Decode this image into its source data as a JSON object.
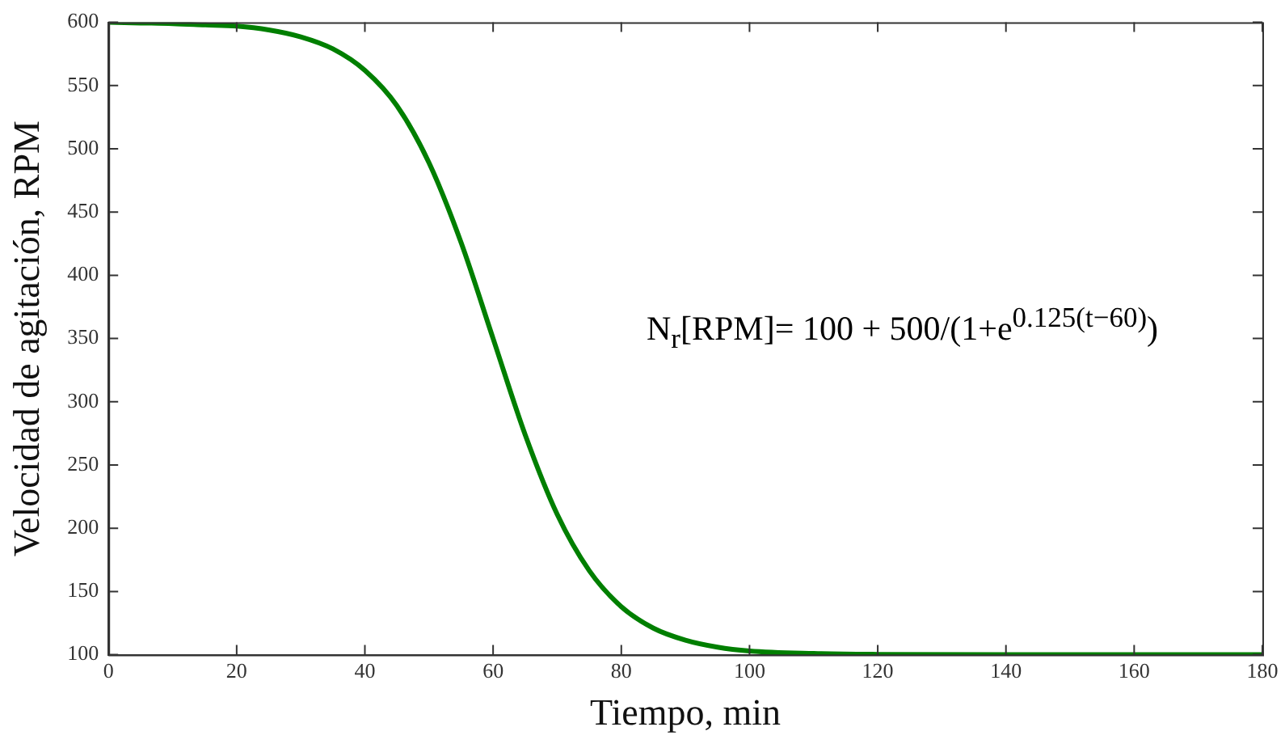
{
  "chart_data": {
    "type": "line",
    "xlabel": "Tiempo, min",
    "ylabel": "Velocidad de agitación, RPM",
    "annotations": [
      "N$_{r}$[RPM]= 100 + 500/(1+e$^{0.125(t−60)}$)"
    ],
    "x": [
      0,
      5,
      10,
      15,
      20,
      25,
      30,
      35,
      40,
      45,
      50,
      55,
      60,
      65,
      70,
      75,
      80,
      85,
      90,
      95,
      100,
      110,
      120,
      140,
      160,
      180
    ],
    "series": [
      {
        "color": "#007f00",
        "values": [
          600,
          599.5,
          599,
          598,
          597,
          594,
          588.5,
          579,
          562,
          534,
          489,
          426,
          350,
          274,
          211,
          166.5,
          138,
          121,
          111.5,
          106,
          103,
          101,
          100.3,
          100,
          100,
          100
        ]
      }
    ],
    "xlim": [
      0,
      180
    ],
    "xticks": [
      0,
      20,
      40,
      60,
      80,
      100,
      120,
      140,
      160,
      180
    ],
    "ylim": [
      100,
      600
    ],
    "yticks": [
      100,
      150,
      200,
      250,
      300,
      350,
      400,
      450,
      500,
      550,
      600
    ],
    "grid": false,
    "legend": false,
    "marker": "none",
    "line_style": "solid"
  }
}
